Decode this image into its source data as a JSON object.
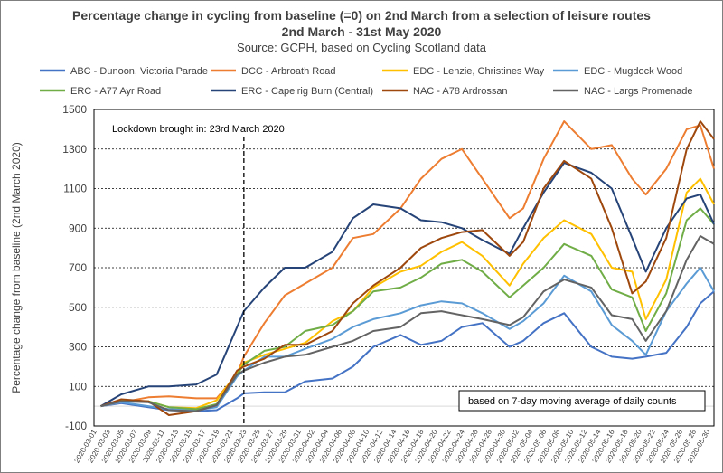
{
  "chart_data": {
    "type": "line",
    "title": "Percentage change in cycling from baseline (=0) on 2nd March from a selection of leisure routes",
    "subtitle": "2nd March - 31st May 2020",
    "source": "Source: GCPH, based on Cycling Scotland data",
    "ylabel": "Percentage change from baseline (2nd March 2020)",
    "xlabel": "",
    "ylim": [
      -100,
      1500
    ],
    "yticks": [
      -100,
      100,
      300,
      500,
      700,
      900,
      1100,
      1300,
      1500
    ],
    "grid": "horizontal dashed",
    "legend_position": "top",
    "x_labels": [
      "2020-03-01",
      "2020-03-03",
      "2020-03-05",
      "2020-03-07",
      "2020-03-09",
      "2020-03-11",
      "2020-03-13",
      "2020-03-15",
      "2020-03-17",
      "2020-03-19",
      "2020-03-21",
      "2020-03-23",
      "2020-03-25",
      "2020-03-27",
      "2020-03-29",
      "2020-03-31",
      "2020-04-02",
      "2020-04-04",
      "2020-04-06",
      "2020-04-08",
      "2020-04-10",
      "2020-04-12",
      "2020-04-14",
      "2020-04-16",
      "2020-04-18",
      "2020-04-20",
      "2020-04-22",
      "2020-04-24",
      "2020-04-26",
      "2020-04-28",
      "2020-04-30",
      "2020-05-02",
      "2020-05-04",
      "2020-05-06",
      "2020-05-08",
      "2020-05-10",
      "2020-05-12",
      "2020-05-14",
      "2020-05-16",
      "2020-05-18",
      "2020-05-20",
      "2020-05-22",
      "2020-05-24",
      "2020-05-26",
      "2020-05-28",
      "2020-05-30"
    ],
    "x_dates": [
      "2020-03-02",
      "2020-03-05",
      "2020-03-09",
      "2020-03-12",
      "2020-03-16",
      "2020-03-19",
      "2020-03-22",
      "2020-03-23",
      "2020-03-26",
      "2020-03-29",
      "2020-04-01",
      "2020-04-05",
      "2020-04-08",
      "2020-04-11",
      "2020-04-15",
      "2020-04-18",
      "2020-04-21",
      "2020-04-24",
      "2020-04-27",
      "2020-05-01",
      "2020-05-03",
      "2020-05-06",
      "2020-05-09",
      "2020-05-13",
      "2020-05-16",
      "2020-05-19",
      "2020-05-21",
      "2020-05-24",
      "2020-05-27",
      "2020-05-29",
      "2020-05-31"
    ],
    "annotations": {
      "lockdown_label": "Lockdown brought in: 23rd March 2020",
      "lockdown_date": "2020-03-23",
      "note": "based on 7-day moving average of daily counts"
    },
    "series": [
      {
        "name": "ABC - Dunoon, Victoria Parade",
        "color": "#4472c4",
        "values": [
          0,
          15,
          -5,
          -20,
          -25,
          -20,
          40,
          65,
          70,
          70,
          125,
          140,
          200,
          300,
          360,
          310,
          330,
          400,
          420,
          300,
          330,
          420,
          470,
          300,
          250,
          240,
          250,
          270,
          400,
          520,
          580
        ]
      },
      {
        "name": "DCC - Arbroath Road",
        "color": "#ed7d31",
        "values": [
          0,
          20,
          45,
          50,
          40,
          40,
          160,
          250,
          420,
          560,
          620,
          700,
          850,
          870,
          1000,
          1150,
          1250,
          1300,
          1150,
          950,
          1000,
          1250,
          1440,
          1300,
          1320,
          1150,
          1070,
          1200,
          1400,
          1420,
          1200
        ]
      },
      {
        "name": "EDC - Lenzie, Christines Way",
        "color": "#ffc000",
        "values": [
          0,
          25,
          25,
          -5,
          -10,
          30,
          170,
          220,
          260,
          290,
          320,
          430,
          480,
          600,
          680,
          710,
          780,
          830,
          760,
          610,
          720,
          850,
          940,
          870,
          700,
          680,
          440,
          640,
          1080,
          1150,
          1020
        ]
      },
      {
        "name": "EDC - Mugdock Wood",
        "color": "#5b9bd5",
        "values": [
          0,
          20,
          0,
          -15,
          -20,
          -5,
          150,
          180,
          250,
          250,
          290,
          340,
          400,
          440,
          470,
          510,
          530,
          520,
          470,
          390,
          430,
          520,
          660,
          580,
          410,
          330,
          260,
          480,
          620,
          700,
          580
        ]
      },
      {
        "name": "ERC - A77 Ayr Road",
        "color": "#70ad47",
        "values": [
          0,
          30,
          25,
          -5,
          -15,
          10,
          160,
          210,
          280,
          300,
          380,
          410,
          480,
          580,
          600,
          650,
          720,
          740,
          680,
          550,
          610,
          700,
          820,
          760,
          590,
          550,
          380,
          570,
          940,
          1000,
          920
        ]
      },
      {
        "name": "ERC - Capelrig Burn (Central)",
        "color": "#264478",
        "values": [
          0,
          60,
          100,
          100,
          110,
          160,
          400,
          480,
          600,
          700,
          700,
          780,
          950,
          1020,
          1000,
          940,
          930,
          900,
          840,
          770,
          900,
          1080,
          1230,
          1180,
          1100,
          850,
          680,
          900,
          1050,
          1070,
          920
        ]
      },
      {
        "name": "NAC - A78 Ardrossan",
        "color": "#9e480e",
        "values": [
          0,
          35,
          25,
          -45,
          -25,
          5,
          180,
          200,
          240,
          310,
          310,
          380,
          520,
          610,
          700,
          800,
          850,
          880,
          890,
          760,
          830,
          1100,
          1240,
          1150,
          900,
          570,
          630,
          850,
          1300,
          1440,
          1350
        ]
      },
      {
        "name": "NAC - Largs Promenade",
        "color": "#636363",
        "values": [
          0,
          25,
          20,
          -20,
          -25,
          5,
          160,
          180,
          220,
          250,
          260,
          300,
          330,
          380,
          400,
          470,
          480,
          460,
          440,
          410,
          450,
          580,
          640,
          600,
          460,
          440,
          330,
          480,
          740,
          860,
          820
        ]
      }
    ]
  }
}
